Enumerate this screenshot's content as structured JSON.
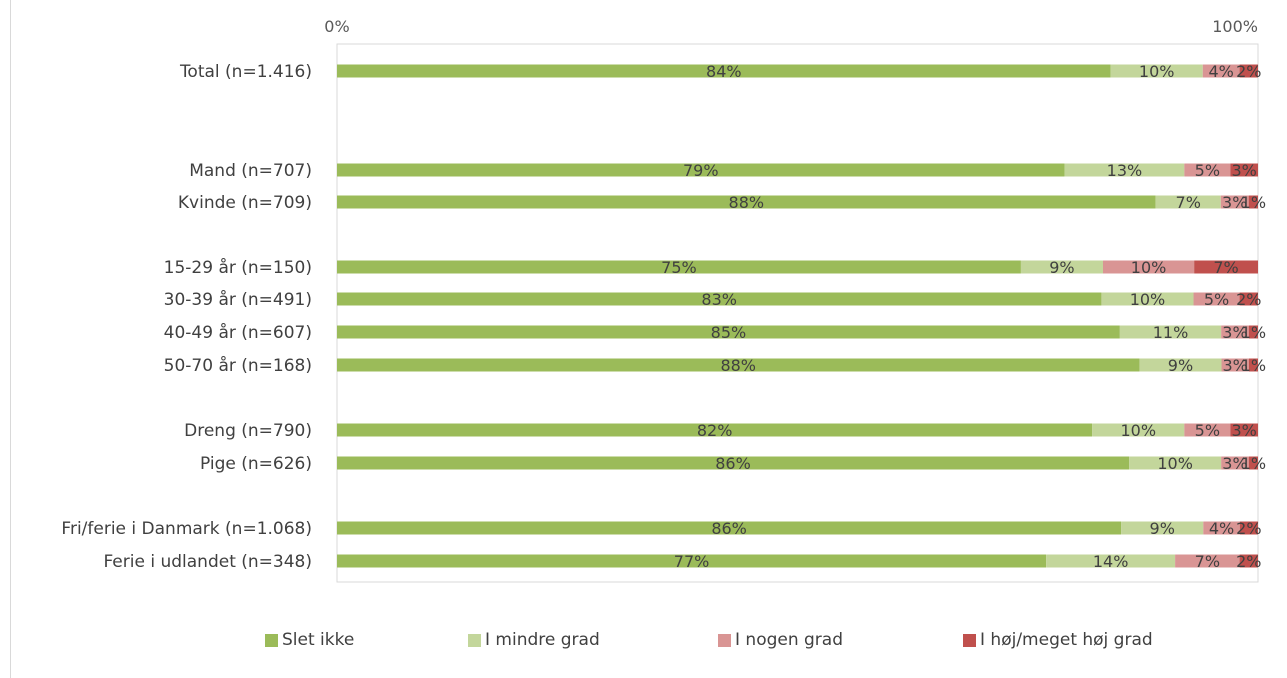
{
  "chart_data": {
    "type": "bar",
    "orientation": "horizontal",
    "stacked": "percent",
    "title": "",
    "xlabel": "",
    "ylabel": "",
    "xlim": [
      0,
      100
    ],
    "x_tick_labels": [
      "0%",
      "100%"
    ],
    "grid": false,
    "legend_position": "bottom",
    "categories": [
      "Total (n=1.416)",
      "Mand (n=707)",
      "Kvinde (n=709)",
      "15-29 år (n=150)",
      "30-39 år (n=491)",
      "40-49 år (n=607)",
      "50-70 år (n=168)",
      "Dreng (n=790)",
      "Pige (n=626)",
      "Fri/ferie i Danmark (n=1.068)",
      "Ferie i udlandet (n=348)"
    ],
    "series": [
      {
        "name": "Slet ikke",
        "color": "#9bbb59",
        "values": [
          84,
          79,
          88,
          75,
          83,
          85,
          88,
          82,
          86,
          86,
          77
        ]
      },
      {
        "name": "I mindre grad",
        "color": "#c3d69b",
        "values": [
          10,
          13,
          7,
          9,
          10,
          11,
          9,
          10,
          10,
          9,
          14
        ]
      },
      {
        "name": "I nogen grad",
        "color": "#d99594",
        "values": [
          4,
          5,
          3,
          10,
          5,
          3,
          3,
          5,
          3,
          4,
          7
        ]
      },
      {
        "name": "I høj/meget høj grad",
        "color": "#c0504d",
        "values": [
          2,
          3,
          1,
          7,
          2,
          1,
          1,
          3,
          1,
          2,
          2
        ]
      }
    ],
    "data_label_suffix": "%"
  }
}
